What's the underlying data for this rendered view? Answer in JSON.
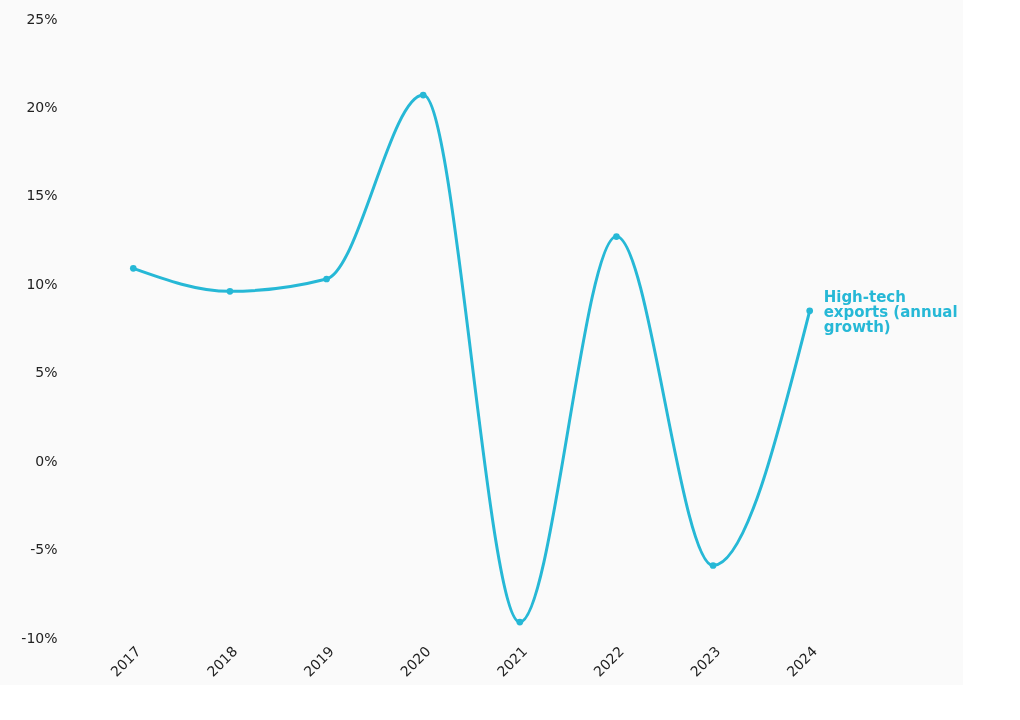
{
  "chart_data": {
    "type": "line",
    "categories": [
      "2017",
      "2018",
      "2019",
      "2020",
      "2021",
      "2022",
      "2023",
      "2024"
    ],
    "series": [
      {
        "name": "High-tech exports (annual growth)",
        "color": "#26b8d6",
        "values": [
          10.9,
          9.6,
          10.3,
          20.7,
          -9.1,
          12.7,
          -5.9,
          8.5
        ]
      }
    ],
    "ylim": [
      -10,
      25
    ],
    "yticks": [
      {
        "value": -10,
        "label": "-10%"
      },
      {
        "value": -5,
        "label": "-5%"
      },
      {
        "value": 0,
        "label": "0%"
      },
      {
        "value": 5,
        "label": "5%"
      },
      {
        "value": 10,
        "label": "10%"
      },
      {
        "value": 15,
        "label": "15%"
      },
      {
        "value": 20,
        "label": "20%"
      },
      {
        "value": 25,
        "label": "25%"
      }
    ],
    "grid": false,
    "legend": false,
    "marker": "circle",
    "line_style": "solid"
  }
}
